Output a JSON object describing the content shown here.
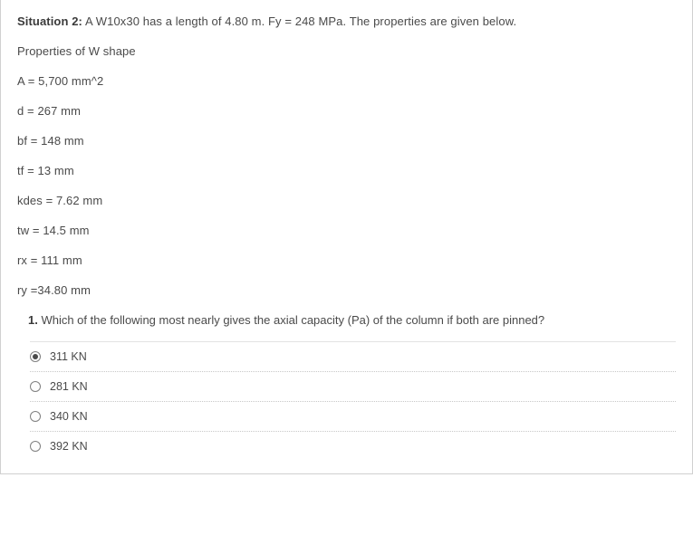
{
  "situation_label": "Situation 2:",
  "situation_text": " A W10x30 has a length of 4.80 m. Fy = 248 MPa. The properties are given below.",
  "properties_title": "Properties of W shape",
  "props": [
    "A = 5,700 mm^2",
    "d = 267 mm",
    "bf = 148 mm",
    "tf = 13 mm",
    "kdes = 7.62 mm",
    "tw = 14.5 mm",
    "rx = 111 mm",
    "ry =34.80 mm"
  ],
  "question_number": "1.",
  "question_text": " Which of the following most nearly gives the axial capacity (Pa) of the column if both are pinned?",
  "options": [
    {
      "label": "311 KN",
      "selected": true
    },
    {
      "label": "281 KN",
      "selected": false
    },
    {
      "label": "340 KN",
      "selected": false
    },
    {
      "label": "392 KN",
      "selected": false
    }
  ],
  "colors": {
    "text": "#4a4a4a",
    "border": "#d0d0d0",
    "dotted": "#c8c8c8"
  }
}
